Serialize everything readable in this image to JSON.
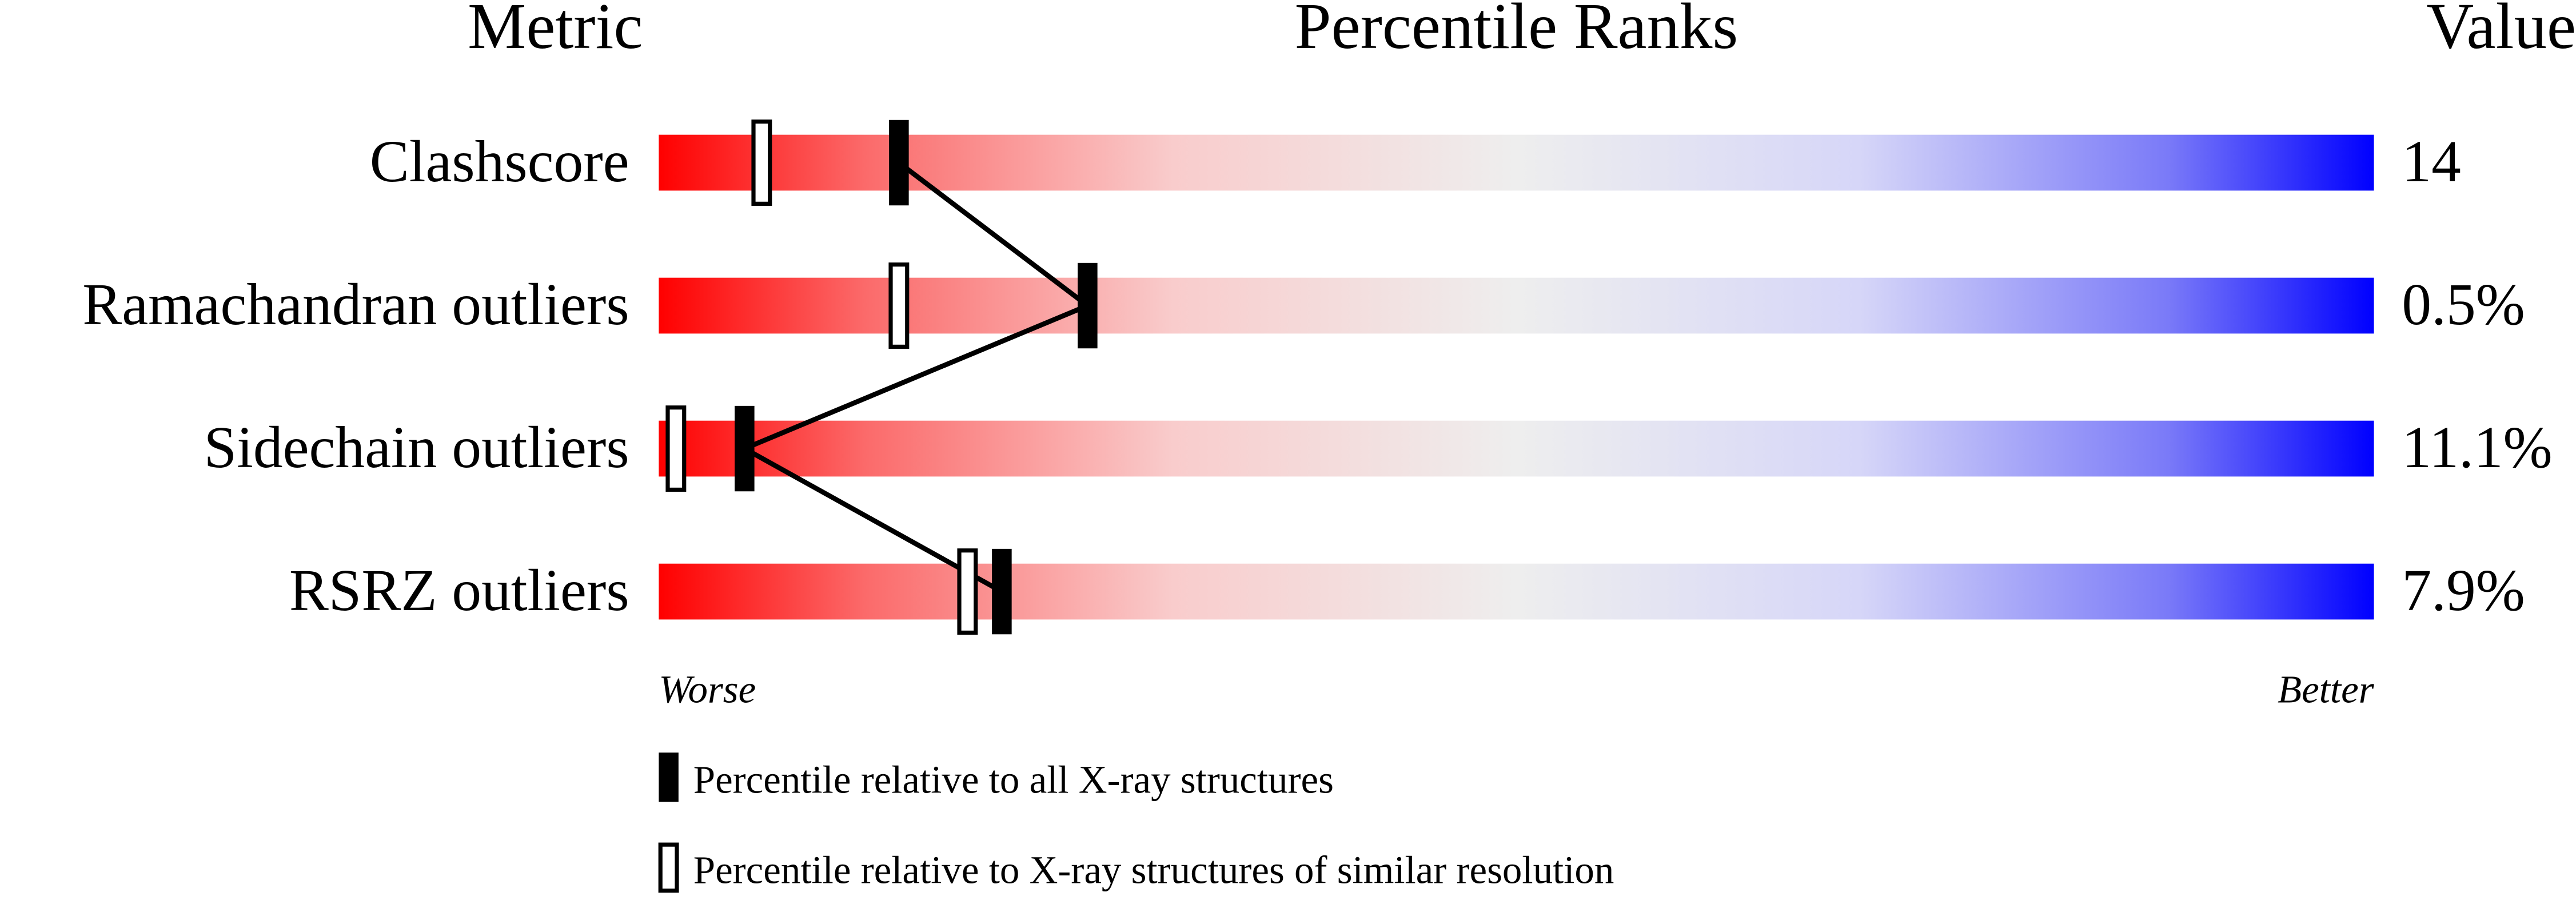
{
  "chart_data": {
    "type": "percentile-slider",
    "column_titles": [
      "Metric",
      "Percentile Ranks",
      "Value"
    ],
    "categories": [
      "Clashscore",
      "Ramachandran outliers",
      "Sidechain outliers",
      "RSRZ outliers"
    ],
    "value_column": [
      "14",
      "0.5%",
      "11.1%",
      "7.9%"
    ],
    "series": [
      {
        "name": "Percentile relative to all X-ray structures",
        "color": "#000000",
        "values": [
          14,
          25,
          5,
          20
        ]
      },
      {
        "name": "Percentile relative to X-ray structures of similar resolution",
        "color": "#000000",
        "values": [
          6,
          14,
          1,
          18
        ]
      }
    ],
    "xlim": [
      0,
      100
    ],
    "axis_end_labels": [
      "Worse",
      "Better"
    ]
  }
}
